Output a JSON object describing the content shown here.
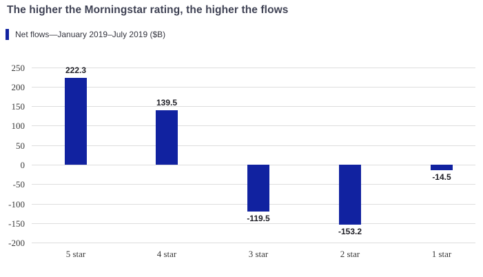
{
  "chart_data": {
    "type": "bar",
    "title": "The higher the Morningstar rating, the higher the flows",
    "legend_label": "Net flows—January 2019–July 2019 ($B)",
    "legend_position": "top-left",
    "categories": [
      "5 star",
      "4 star",
      "3 star",
      "2 star",
      "1 star"
    ],
    "values": [
      222.3,
      139.5,
      -119.5,
      -153.2,
      -14.5
    ],
    "value_labels": [
      "222.3",
      "139.5",
      "-119.5",
      "-153.2",
      "-14.5"
    ],
    "xlabel": "",
    "ylabel": "",
    "ylim": [
      -200,
      250
    ],
    "y_ticks": [
      250,
      200,
      150,
      100,
      50,
      0,
      -50,
      -100,
      -150,
      -200
    ],
    "grid": true,
    "colors": {
      "bar": "#1122A0",
      "title": "#3F4254",
      "legend_text": "#33343E",
      "tick_text": "#3A3A3A",
      "value_text": "#1D1D24",
      "gridline": "#DDDDDD",
      "background": "#FFFFFF"
    }
  }
}
